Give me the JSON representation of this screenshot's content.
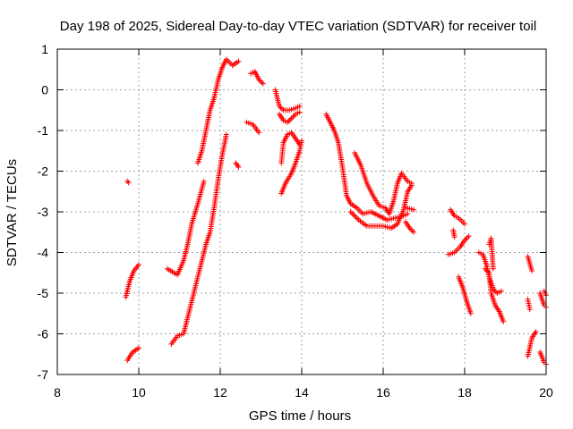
{
  "chart_data": {
    "type": "scatter",
    "title": "Day 198 of 2025, Sidereal Day-to-day VTEC variation (SDTVAR) for receiver toil",
    "xlabel": "GPS time / hours",
    "ylabel": "SDTVAR / TECUs",
    "xlim": [
      8,
      20
    ],
    "ylim": [
      -7,
      1
    ],
    "xticks": [
      8,
      10,
      12,
      14,
      16,
      18,
      20
    ],
    "yticks": [
      -7,
      -6,
      -5,
      -4,
      -3,
      -2,
      -1,
      0,
      1
    ],
    "grid": true,
    "marker": "+",
    "color": "#ff0000",
    "segments": [
      [
        [
          9.72,
          -2.25
        ],
        [
          9.75,
          -2.28
        ]
      ],
      [
        [
          9.68,
          -5.1
        ],
        [
          9.78,
          -4.7
        ],
        [
          9.88,
          -4.45
        ],
        [
          10.0,
          -4.3
        ]
      ],
      [
        [
          9.72,
          -6.65
        ],
        [
          9.85,
          -6.45
        ],
        [
          10.0,
          -6.35
        ]
      ],
      [
        [
          10.7,
          -4.4
        ],
        [
          10.95,
          -4.55
        ],
        [
          11.1,
          -4.2
        ],
        [
          11.2,
          -3.8
        ],
        [
          11.3,
          -3.3
        ],
        [
          11.45,
          -2.8
        ],
        [
          11.6,
          -2.25
        ]
      ],
      [
        [
          10.8,
          -6.25
        ],
        [
          10.95,
          -6.05
        ],
        [
          11.1,
          -6.0
        ],
        [
          11.2,
          -5.6
        ],
        [
          11.35,
          -5.0
        ],
        [
          11.5,
          -4.4
        ],
        [
          11.65,
          -3.8
        ],
        [
          11.75,
          -3.5
        ],
        [
          11.85,
          -2.9
        ],
        [
          11.95,
          -2.2
        ],
        [
          12.05,
          -1.6
        ],
        [
          12.15,
          -1.1
        ]
      ],
      [
        [
          11.45,
          -1.8
        ],
        [
          11.55,
          -1.5
        ],
        [
          11.65,
          -1.0
        ],
        [
          11.75,
          -0.5
        ],
        [
          11.85,
          -0.2
        ],
        [
          11.95,
          0.25
        ],
        [
          12.05,
          0.55
        ],
        [
          12.15,
          0.75
        ],
        [
          12.3,
          0.6
        ],
        [
          12.45,
          0.7
        ]
      ],
      [
        [
          12.38,
          -1.8
        ],
        [
          12.45,
          -1.9
        ]
      ],
      [
        [
          12.65,
          -0.8
        ],
        [
          12.8,
          -0.85
        ],
        [
          12.95,
          -1.05
        ]
      ],
      [
        [
          12.75,
          0.4
        ],
        [
          12.85,
          0.45
        ],
        [
          12.95,
          0.25
        ],
        [
          13.05,
          0.15
        ]
      ],
      [
        [
          13.35,
          0.0
        ],
        [
          13.45,
          -0.4
        ],
        [
          13.55,
          -0.5
        ],
        [
          13.7,
          -0.5
        ],
        [
          13.85,
          -0.45
        ],
        [
          13.95,
          -0.4
        ]
      ],
      [
        [
          13.5,
          -1.8
        ],
        [
          13.55,
          -1.3
        ],
        [
          13.65,
          -1.1
        ],
        [
          13.75,
          -1.05
        ],
        [
          13.85,
          -1.2
        ],
        [
          13.95,
          -1.35
        ]
      ],
      [
        [
          13.5,
          -2.55
        ],
        [
          13.6,
          -2.3
        ],
        [
          13.75,
          -2.05
        ],
        [
          13.85,
          -1.8
        ],
        [
          13.95,
          -1.5
        ],
        [
          14.0,
          -1.25
        ]
      ],
      [
        [
          13.45,
          -0.6
        ],
        [
          13.55,
          -0.75
        ],
        [
          13.65,
          -0.8
        ],
        [
          13.75,
          -0.7
        ],
        [
          13.85,
          -0.6
        ],
        [
          13.95,
          -0.55
        ]
      ],
      [
        [
          14.6,
          -0.6
        ],
        [
          14.7,
          -0.8
        ],
        [
          14.8,
          -1.0
        ],
        [
          14.9,
          -1.3
        ],
        [
          15.0,
          -1.9
        ],
        [
          15.1,
          -2.6
        ],
        [
          15.2,
          -2.8
        ],
        [
          15.35,
          -2.9
        ],
        [
          15.5,
          -3.05
        ],
        [
          15.7,
          -3.0
        ],
        [
          15.9,
          -3.1
        ],
        [
          16.1,
          -3.2
        ],
        [
          16.3,
          -3.15
        ],
        [
          16.5,
          -3.1
        ],
        [
          16.6,
          -3.05
        ]
      ],
      [
        [
          15.2,
          -3.0
        ],
        [
          15.4,
          -3.2
        ],
        [
          15.6,
          -3.35
        ],
        [
          15.8,
          -3.35
        ],
        [
          16.0,
          -3.35
        ],
        [
          16.2,
          -3.4
        ],
        [
          16.35,
          -3.3
        ],
        [
          16.5,
          -2.95
        ],
        [
          16.6,
          -2.5
        ],
        [
          16.7,
          -2.35
        ]
      ],
      [
        [
          15.3,
          -1.55
        ],
        [
          15.45,
          -1.85
        ],
        [
          15.6,
          -2.3
        ],
        [
          15.75,
          -2.6
        ],
        [
          15.9,
          -2.85
        ],
        [
          16.05,
          -2.9
        ],
        [
          16.15,
          -3.05
        ],
        [
          16.25,
          -2.75
        ],
        [
          16.35,
          -2.3
        ],
        [
          16.45,
          -2.05
        ],
        [
          16.6,
          -2.25
        ],
        [
          16.7,
          -2.3
        ]
      ],
      [
        [
          16.55,
          -3.25
        ],
        [
          16.65,
          -3.4
        ],
        [
          16.75,
          -3.5
        ]
      ],
      [
        [
          16.55,
          -2.9
        ],
        [
          16.75,
          -2.95
        ]
      ],
      [
        [
          17.65,
          -2.95
        ],
        [
          17.75,
          -3.1
        ],
        [
          17.85,
          -3.15
        ],
        [
          18.0,
          -3.3
        ]
      ],
      [
        [
          17.6,
          -4.05
        ],
        [
          17.75,
          -4.0
        ],
        [
          17.9,
          -3.85
        ],
        [
          18.0,
          -3.7
        ],
        [
          18.1,
          -3.6
        ]
      ],
      [
        [
          17.72,
          -3.45
        ],
        [
          17.75,
          -3.62
        ]
      ],
      [
        [
          17.85,
          -4.6
        ],
        [
          17.95,
          -4.85
        ],
        [
          18.05,
          -5.2
        ],
        [
          18.15,
          -5.5
        ]
      ],
      [
        [
          18.35,
          -4.0
        ],
        [
          18.45,
          -4.05
        ],
        [
          18.55,
          -4.35
        ],
        [
          18.6,
          -4.6
        ],
        [
          18.7,
          -4.9
        ],
        [
          18.8,
          -5.0
        ],
        [
          18.9,
          -4.95
        ]
      ],
      [
        [
          18.5,
          -4.4
        ],
        [
          18.6,
          -4.5
        ],
        [
          18.65,
          -5.0
        ],
        [
          18.75,
          -5.3
        ],
        [
          18.85,
          -5.45
        ],
        [
          18.95,
          -5.7
        ]
      ],
      [
        [
          18.6,
          -3.8
        ],
        [
          18.65,
          -3.65
        ],
        [
          18.7,
          -4.4
        ]
      ],
      [
        [
          19.55,
          -4.1
        ],
        [
          19.65,
          -4.45
        ]
      ],
      [
        [
          19.55,
          -5.15
        ],
        [
          19.6,
          -5.4
        ]
      ],
      [
        [
          19.55,
          -6.55
        ],
        [
          19.65,
          -6.1
        ],
        [
          19.75,
          -5.95
        ]
      ],
      [
        [
          19.85,
          -6.45
        ],
        [
          19.95,
          -6.7
        ],
        [
          20.0,
          -6.75
        ]
      ],
      [
        [
          19.85,
          -5.0
        ],
        [
          19.95,
          -5.3
        ],
        [
          20.0,
          -5.35
        ]
      ],
      [
        [
          19.95,
          -4.95
        ],
        [
          20.0,
          -5.05
        ]
      ]
    ]
  }
}
